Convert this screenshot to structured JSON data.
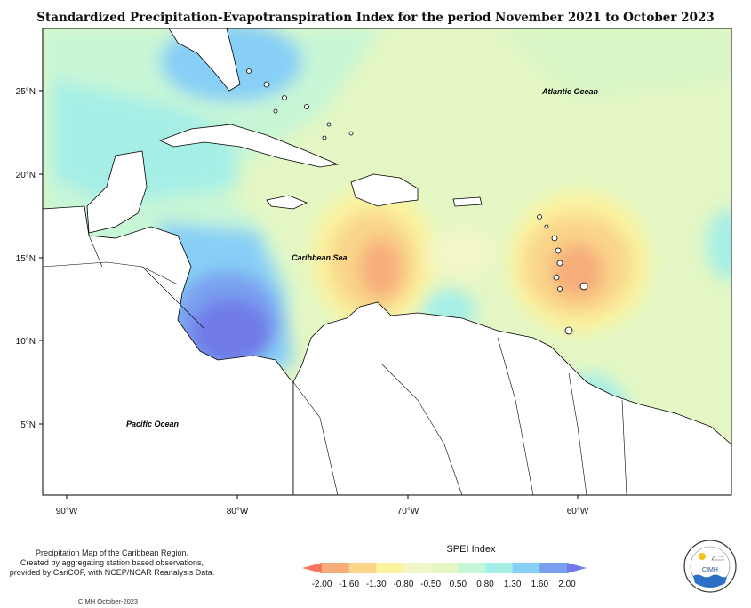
{
  "title": "Standardized Precipitation-Evapotranspiration Index for the period November 2021 to October 2023",
  "map": {
    "lat_labels": [
      "25°N",
      "20°N",
      "15°N",
      "10°N",
      "5°N"
    ],
    "lon_labels": [
      "90°W",
      "80°W",
      "70°W",
      "60°W"
    ],
    "labels": {
      "atlantic": "Atlantic Ocean",
      "caribbean": "Caribbean Sea",
      "pacific": "Pacific Ocean"
    },
    "extent": {
      "lon": [
        -92,
        -51
      ],
      "lat": [
        1.5,
        28.3
      ]
    }
  },
  "legend": {
    "title": "SPEI Index",
    "ticks": [
      "-2.00",
      "-1.60",
      "-1.30",
      "-0.80",
      "-0.50",
      "0.50",
      "0.80",
      "1.30",
      "1.60",
      "2.00"
    ],
    "colors": [
      "#f4765e",
      "#f7ad7a",
      "#f9d58a",
      "#fbf3a0",
      "#f3f6c8",
      "#e4f7c4",
      "#c7f6d6",
      "#a6efe7",
      "#87cff6",
      "#7a9ff0",
      "#6f7ae8"
    ]
  },
  "notes": {
    "line1": "Precipitation Map of the Caribbean Region.",
    "line2": "Created by aggregating station based observations,",
    "line3": "provided by CariCOF, with NCEP/NCAR Reanalysis Data.",
    "credit": "CIMH October-2023"
  },
  "logo": {
    "text": "CIMH"
  }
}
